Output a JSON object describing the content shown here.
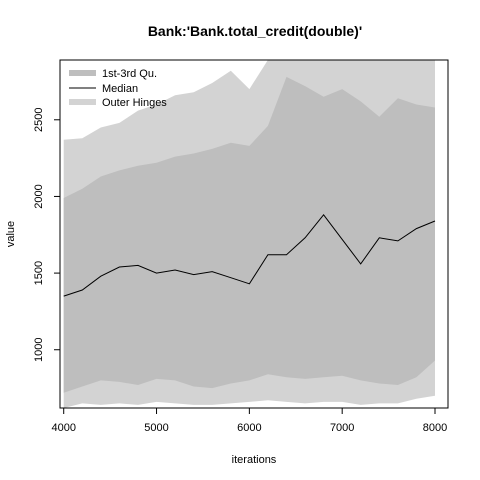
{
  "chart_data": {
    "type": "area",
    "title": "Bank:'Bank.total_credit(double)'",
    "xlabel": "iterations",
    "ylabel": "value",
    "xlim": [
      3960,
      8140
    ],
    "ylim": [
      620,
      2890
    ],
    "x_ticks": [
      4000,
      5000,
      6000,
      7000,
      8000
    ],
    "y_ticks": [
      1000,
      1500,
      2000,
      2500
    ],
    "legend": {
      "position": "top-left",
      "entries": [
        {
          "label": "1st-3rd Qu.",
          "color": "#bebebe",
          "style": "thick"
        },
        {
          "label": "Median",
          "color": "#000000",
          "style": "thin"
        },
        {
          "label": "Outer Hinges",
          "color": "#d3d3d3",
          "style": "thick"
        }
      ]
    },
    "x": [
      4000,
      4200,
      4400,
      4600,
      4800,
      5000,
      5200,
      5400,
      5600,
      5800,
      6000,
      6200,
      6400,
      6600,
      6800,
      7000,
      7200,
      7400,
      7600,
      7800,
      8000
    ],
    "series": [
      {
        "name": "Outer Hinges upper",
        "color": "#d3d3d3",
        "values": [
          2370,
          2380,
          2450,
          2480,
          2560,
          2600,
          2660,
          2680,
          2740,
          2820,
          2700,
          2890,
          2890,
          2890,
          2890,
          2890,
          2890,
          2890,
          2890,
          2890,
          2890
        ]
      },
      {
        "name": "1st-3rd Qu. upper",
        "color": "#bebebe",
        "values": [
          1990,
          2050,
          2130,
          2170,
          2200,
          2220,
          2260,
          2280,
          2310,
          2350,
          2330,
          2460,
          2780,
          2720,
          2650,
          2700,
          2620,
          2520,
          2640,
          2600,
          2580
        ]
      },
      {
        "name": "Median",
        "color": "#000000",
        "values": [
          1350,
          1390,
          1480,
          1540,
          1550,
          1500,
          1520,
          1490,
          1510,
          1470,
          1430,
          1620,
          1620,
          1730,
          1880,
          1720,
          1560,
          1730,
          1710,
          1790,
          1840
        ]
      },
      {
        "name": "1st-3rd Qu. lower",
        "color": "#bebebe",
        "values": [
          720,
          760,
          800,
          790,
          770,
          810,
          800,
          760,
          750,
          780,
          800,
          840,
          820,
          810,
          820,
          830,
          800,
          780,
          770,
          820,
          930
        ]
      },
      {
        "name": "Outer Hinges lower",
        "color": "#d3d3d3",
        "values": [
          620,
          650,
          640,
          650,
          640,
          660,
          650,
          640,
          640,
          650,
          660,
          670,
          660,
          650,
          660,
          660,
          640,
          650,
          650,
          680,
          700
        ]
      }
    ],
    "grid": false,
    "colors": {
      "outer": "#d3d3d3",
      "quartile": "#bebebe",
      "median": "#000000"
    }
  }
}
